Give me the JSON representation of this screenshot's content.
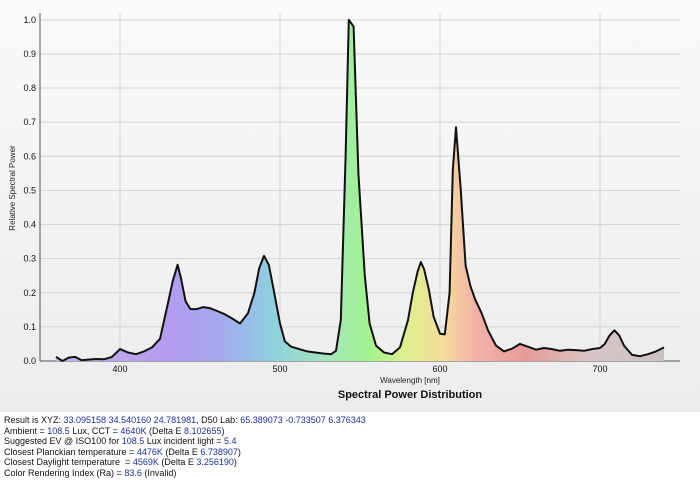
{
  "chart_data": {
    "type": "area",
    "title": "Spectral Power Distribution",
    "xlabel": "Wavelength [nm]",
    "ylabel": "Relative Spectral Power",
    "xlim": [
      350,
      750
    ],
    "ylim": [
      0,
      1.02
    ],
    "x_ticks": [
      400,
      500,
      600,
      700
    ],
    "y_ticks": [
      0.0,
      0.1,
      0.2,
      0.3,
      0.4,
      0.5,
      0.6,
      0.7,
      0.8,
      0.9,
      1.0
    ],
    "grid": true,
    "series": [
      {
        "x": [
          360,
          364,
          368,
          372,
          376,
          380,
          385,
          390,
          395,
          400,
          405,
          410,
          415,
          420,
          425,
          430,
          433,
          436,
          438,
          441,
          444,
          448,
          452,
          456,
          460,
          465,
          470,
          475,
          480,
          484,
          487,
          490,
          493,
          496,
          500,
          503,
          507,
          512,
          517,
          522,
          527,
          532,
          535,
          538,
          541,
          543,
          546,
          549,
          553,
          556,
          560,
          565,
          570,
          575,
          580,
          583,
          586,
          588,
          590,
          593,
          596,
          600,
          603,
          606,
          608,
          610,
          613,
          616,
          619,
          622,
          626,
          630,
          635,
          640,
          645,
          650,
          655,
          660,
          665,
          670,
          675,
          680,
          685,
          690,
          695,
          700,
          703,
          706,
          709,
          712,
          715,
          720,
          725,
          730,
          735,
          740
        ],
        "y": [
          0.012,
          0.0,
          0.01,
          0.012,
          0.002,
          0.004,
          0.006,
          0.005,
          0.012,
          0.035,
          0.025,
          0.02,
          0.028,
          0.04,
          0.065,
          0.17,
          0.235,
          0.282,
          0.245,
          0.175,
          0.152,
          0.152,
          0.158,
          0.155,
          0.148,
          0.138,
          0.125,
          0.11,
          0.14,
          0.2,
          0.272,
          0.308,
          0.282,
          0.21,
          0.11,
          0.058,
          0.042,
          0.035,
          0.028,
          0.025,
          0.022,
          0.02,
          0.03,
          0.12,
          0.6,
          1.0,
          0.98,
          0.55,
          0.25,
          0.11,
          0.045,
          0.025,
          0.02,
          0.04,
          0.12,
          0.2,
          0.262,
          0.29,
          0.27,
          0.21,
          0.13,
          0.08,
          0.078,
          0.2,
          0.56,
          0.685,
          0.5,
          0.28,
          0.22,
          0.18,
          0.14,
          0.09,
          0.045,
          0.028,
          0.036,
          0.05,
          0.042,
          0.033,
          0.038,
          0.035,
          0.03,
          0.033,
          0.032,
          0.03,
          0.035,
          0.038,
          0.05,
          0.075,
          0.09,
          0.075,
          0.045,
          0.018,
          0.014,
          0.02,
          0.028,
          0.04
        ]
      }
    ]
  },
  "results": {
    "line1": {
      "label": "Result is XYZ: ",
      "xyz": "33.095158 34.540160 24.781981",
      "mid": ", D50 Lab: ",
      "lab": "65.389073 -0.733507 6.376343"
    },
    "line2": {
      "label": "Ambient = ",
      "lux": "108.5",
      "mid1": " Lux, CCT = ",
      "cct": "4640K",
      "mid2": " (Delta E ",
      "delta": "8.102655",
      "end": ")"
    },
    "line3": {
      "label": "Suggested EV @ ISO100 for ",
      "lux": "108.5",
      "mid": " Lux incident light = ",
      "ev": "5.4"
    },
    "line4": {
      "label": "Closest Planckian temperature = ",
      "temp": "4476K",
      "mid": " (Delta E ",
      "delta": "6.738907",
      "end": ")"
    },
    "line5": {
      "label": "Closest Daylight temperature  = ",
      "temp": "4569K",
      "mid": " (Delta E ",
      "delta": "3.256190",
      "end": ")"
    },
    "line6": {
      "label": "Color Rendering Index (Ra) = ",
      "cri": "83.6",
      "end": " (Invalid)"
    }
  }
}
